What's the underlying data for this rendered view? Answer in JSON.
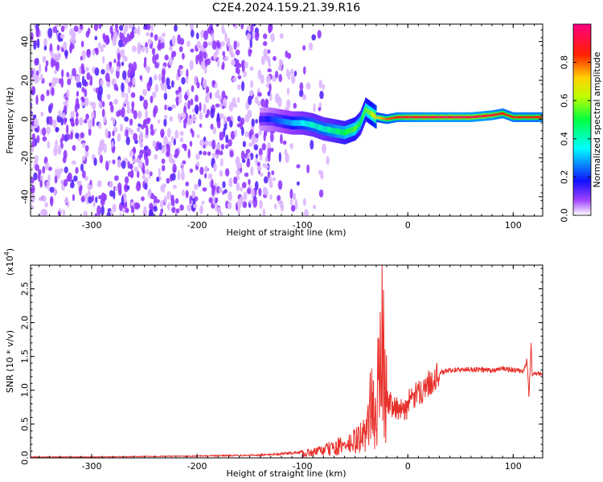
{
  "title": "C2E4.2024.159.21.39.R16",
  "colors": {
    "snr_line": "#e8302a",
    "axis": "#000000",
    "scatter": "#8a2be2",
    "colormap": [
      "#ffffff",
      "#8a00ff",
      "#0000ff",
      "#00ffff",
      "#00ff00",
      "#ffff00",
      "#ff8000",
      "#ff0000",
      "#ff0090"
    ]
  },
  "chart_data": [
    {
      "type": "heatmap",
      "xlabel": "Height of straight line (km)",
      "ylabel": "Frequency (Hz)",
      "xlim": [
        -358,
        128
      ],
      "ylim": [
        -50,
        49
      ],
      "xticks": [
        -300,
        -200,
        -100,
        0,
        100
      ],
      "yticks": [
        -40,
        -20,
        0,
        20,
        40
      ],
      "xtick_labels": [
        "-300",
        "-200",
        "-100",
        "0",
        "100"
      ],
      "ytick_labels": [
        "-40",
        "-20",
        "0",
        "20",
        "40"
      ],
      "colorbar": {
        "label": "Normalized spectral amplitude",
        "range": [
          0,
          1
        ],
        "ticks": [
          0.0,
          0.2,
          0.4,
          0.6,
          0.8
        ],
        "tick_labels": [
          "0.0",
          "0.2",
          "0.4",
          "0.6",
          "0.8"
        ]
      },
      "noise_region": {
        "x_range": [
          -358,
          -100
        ],
        "y_range": [
          -50,
          49
        ],
        "amplitude": 0.15
      },
      "signal_track": {
        "x": [
          -140,
          -130,
          -120,
          -110,
          -100,
          -90,
          -80,
          -70,
          -60,
          -50,
          -45,
          -40,
          -35,
          -30,
          -20,
          -10,
          0,
          20,
          40,
          60,
          80,
          90,
          100,
          110,
          128
        ],
        "frequency": [
          0,
          0,
          -1,
          -2,
          -2,
          -3,
          -5,
          -6,
          -7,
          -5,
          -2,
          5,
          3,
          1,
          0,
          1,
          1,
          1,
          1,
          1,
          2,
          3,
          1,
          1,
          1
        ],
        "amplitude": [
          0.15,
          0.2,
          0.25,
          0.3,
          0.35,
          0.4,
          0.4,
          0.45,
          0.5,
          0.55,
          0.5,
          0.55,
          0.6,
          0.7,
          0.8,
          0.85,
          0.9,
          0.92,
          0.93,
          0.93,
          0.9,
          0.85,
          0.85,
          0.85,
          0.85
        ]
      }
    },
    {
      "type": "line",
      "xlabel": "Height of straight line (km)",
      "ylabel": "SNR (10 * v/v)",
      "y_scale_label": "(x10",
      "y_scale_exponent": "4",
      "y_scale_close": ")",
      "xlim": [
        -358,
        128
      ],
      "ylim": [
        0,
        2.85
      ],
      "xticks": [
        -300,
        -200,
        -100,
        0,
        100
      ],
      "yticks": [
        0.0,
        0.5,
        1.0,
        1.5,
        2.0,
        2.5
      ],
      "xtick_labels": [
        "-300",
        "-200",
        "-100",
        "0",
        "100"
      ],
      "ytick_labels": [
        "0.0",
        "0.5",
        "1.0",
        "1.5",
        "2.0",
        "2.5"
      ],
      "series": [
        {
          "x": [
            -358,
            -300,
            -200,
            -140,
            -110,
            -90,
            -70,
            -55,
            -45,
            -40,
            -35,
            -30,
            -28,
            -26,
            -25,
            -24,
            -22,
            -20,
            -15,
            -10,
            -5,
            0,
            10,
            20,
            30,
            40,
            50,
            60,
            70,
            80,
            90,
            100,
            110,
            113,
            115,
            117,
            118,
            120,
            128
          ],
          "y": [
            0.01,
            0.01,
            0.02,
            0.03,
            0.05,
            0.08,
            0.15,
            0.2,
            0.3,
            0.35,
            0.8,
            0.5,
            1.1,
            1.45,
            0.6,
            2.85,
            1.0,
            0.85,
            0.8,
            0.75,
            0.65,
            0.8,
            0.95,
            1.1,
            1.25,
            1.3,
            1.3,
            1.31,
            1.3,
            1.29,
            1.32,
            1.3,
            1.27,
            1.45,
            0.9,
            1.72,
            1.25,
            1.25,
            1.25
          ]
        }
      ]
    }
  ]
}
